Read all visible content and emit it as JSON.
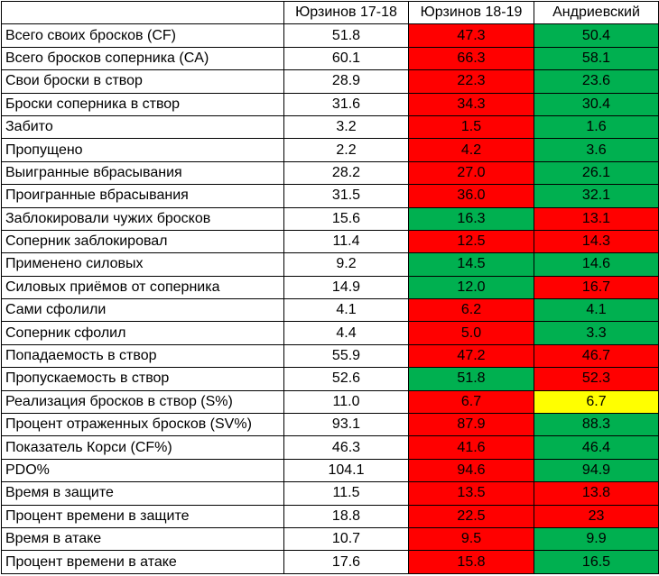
{
  "headers": [
    "",
    "Юрзинов 17-18",
    "Юрзинов 18-19",
    "Андриевский"
  ],
  "colors": {
    "red": "#ff0000",
    "green": "#00b050",
    "yellow": "#ffff00",
    "white": "#ffffff"
  },
  "rows": [
    {
      "label": "Всего своих бросков (CF)",
      "v1": "51.8",
      "v2": "47.3",
      "v3": "50.4",
      "c2": "red",
      "c3": "green"
    },
    {
      "label": "Всего бросков соперника (CA)",
      "v1": "60.1",
      "v2": "66.3",
      "v3": "58.1",
      "c2": "red",
      "c3": "green"
    },
    {
      "label": "Свои броски в створ",
      "v1": "28.9",
      "v2": "22.3",
      "v3": "23.6",
      "c2": "red",
      "c3": "green"
    },
    {
      "label": "Броски соперника в створ",
      "v1": "31.6",
      "v2": "34.3",
      "v3": "30.4",
      "c2": "red",
      "c3": "green"
    },
    {
      "label": "Забито",
      "v1": "3.2",
      "v2": "1.5",
      "v3": "1.6",
      "c2": "red",
      "c3": "green"
    },
    {
      "label": "Пропущено",
      "v1": "2.2",
      "v2": "4.2",
      "v3": "3.6",
      "c2": "red",
      "c3": "green"
    },
    {
      "label": "Выигранные вбрасывания",
      "v1": "28.2",
      "v2": "27.0",
      "v3": "26.1",
      "c2": "red",
      "c3": "green"
    },
    {
      "label": "Проигранные вбрасывания",
      "v1": "31.5",
      "v2": "36.0",
      "v3": "32.1",
      "c2": "red",
      "c3": "green"
    },
    {
      "label": "Заблокировали чужих бросков",
      "v1": "15.6",
      "v2": "16.3",
      "v3": "13.1",
      "c2": "green",
      "c3": "red"
    },
    {
      "label": "Соперник заблокировал",
      "v1": "11.4",
      "v2": "12.5",
      "v3": "14.3",
      "c2": "red",
      "c3": "red"
    },
    {
      "label": "Применено силовых",
      "v1": "9.2",
      "v2": "14.5",
      "v3": "14.6",
      "c2": "green",
      "c3": "green"
    },
    {
      "label": "Силовых приёмов от соперника",
      "v1": "14.9",
      "v2": "12.0",
      "v3": "16.7",
      "c2": "green",
      "c3": "red"
    },
    {
      "label": "Сами сфолили",
      "v1": "4.1",
      "v2": "6.2",
      "v3": "4.1",
      "c2": "red",
      "c3": "green"
    },
    {
      "label": "Соперник сфолил",
      "v1": "4.4",
      "v2": "5.0",
      "v3": "3.3",
      "c2": "red",
      "c3": "green"
    },
    {
      "label": "Попадаемость в створ",
      "v1": "55.9",
      "v2": "47.2",
      "v3": "46.7",
      "c2": "red",
      "c3": "red"
    },
    {
      "label": "Пропускаемость в створ",
      "v1": "52.6",
      "v2": "51.8",
      "v3": "52.3",
      "c2": "green",
      "c3": "red"
    },
    {
      "label": "Реализация бросков в створ (S%)",
      "v1": "11.0",
      "v2": "6.7",
      "v3": "6.7",
      "c2": "red",
      "c3": "yellow"
    },
    {
      "label": "Процент отраженных бросков (SV%)",
      "v1": "93.1",
      "v2": "87.9",
      "v3": "88.3",
      "c2": "red",
      "c3": "green"
    },
    {
      "label": "Показатель Корси (CF%)",
      "v1": "46.3",
      "v2": "41.6",
      "v3": "46.4",
      "c2": "red",
      "c3": "green"
    },
    {
      "label": "PDO%",
      "v1": "104.1",
      "v2": "94.6",
      "v3": "94.9",
      "c2": "red",
      "c3": "green"
    },
    {
      "label": "Время в защите",
      "v1": "11.5",
      "v2": "13.5",
      "v3": "13.8",
      "c2": "red",
      "c3": "red"
    },
    {
      "label": "Процент времени в защите",
      "v1": "18.8",
      "v2": "22.5",
      "v3": "23",
      "c2": "red",
      "c3": "red"
    },
    {
      "label": "Время в атаке",
      "v1": "10.7",
      "v2": "9.5",
      "v3": "9.9",
      "c2": "red",
      "c3": "green"
    },
    {
      "label": "Процент времени в атаке",
      "v1": "17.6",
      "v2": "15.8",
      "v3": "16.5",
      "c2": "red",
      "c3": "green"
    }
  ]
}
